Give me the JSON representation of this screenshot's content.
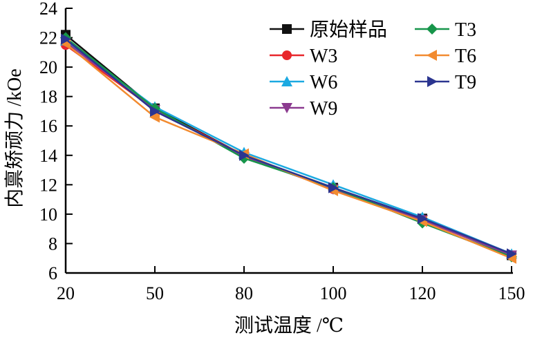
{
  "chart_data": {
    "type": "line",
    "title": "",
    "xlabel": "测试温度 /℃",
    "ylabel": "内禀矫顽力 /kOe",
    "categories": [
      "20",
      "50",
      "80",
      "100",
      "120",
      "150"
    ],
    "ylim": [
      6,
      24
    ],
    "yticks": [
      "6",
      "8",
      "10",
      "12",
      "14",
      "16",
      "18",
      "20",
      "22",
      "24"
    ],
    "legend_position": "top-right",
    "series": [
      {
        "name": "原始样品",
        "color": "#111111",
        "marker": "square",
        "values": [
          22.2,
          17.2,
          14.0,
          11.8,
          9.7,
          7.2
        ]
      },
      {
        "name": "W3",
        "color": "#e8262b",
        "marker": "circle",
        "values": [
          21.5,
          17.1,
          14.0,
          11.7,
          9.6,
          7.2
        ]
      },
      {
        "name": "W6",
        "color": "#1ba9e1",
        "marker": "triangle-up",
        "values": [
          21.8,
          17.3,
          14.2,
          12.0,
          9.8,
          7.3
        ]
      },
      {
        "name": "W9",
        "color": "#8b3a8f",
        "marker": "triangle-down",
        "values": [
          21.7,
          17.1,
          13.9,
          11.7,
          9.6,
          7.2
        ]
      },
      {
        "name": "T3",
        "color": "#16954a",
        "marker": "diamond",
        "values": [
          22.0,
          17.2,
          13.8,
          11.8,
          9.4,
          7.1
        ]
      },
      {
        "name": "T6",
        "color": "#f28b30",
        "marker": "triangle-left",
        "values": [
          21.6,
          16.6,
          14.1,
          11.6,
          9.5,
          7.0
        ]
      },
      {
        "name": "T9",
        "color": "#2b3590",
        "marker": "triangle-right",
        "values": [
          21.9,
          17.0,
          14.0,
          11.8,
          9.7,
          7.3
        ]
      }
    ]
  }
}
